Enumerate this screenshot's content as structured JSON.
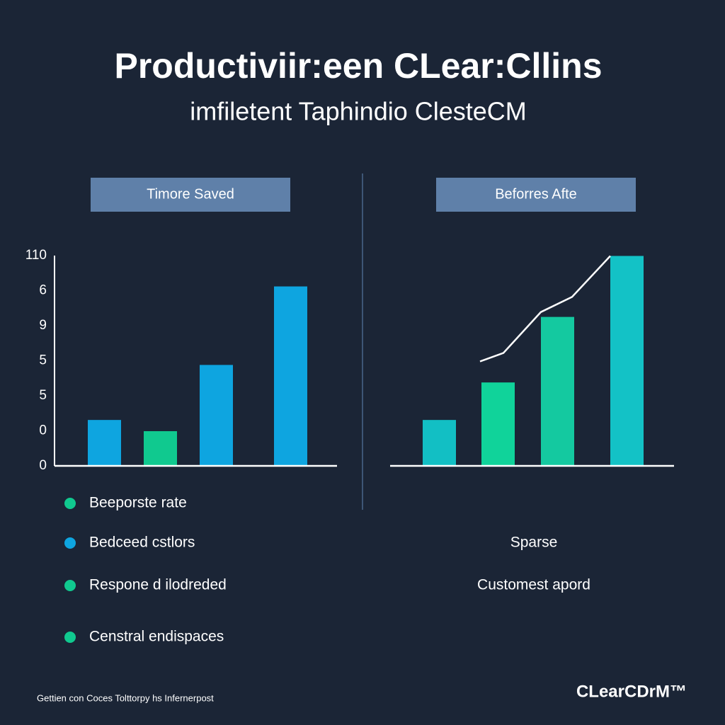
{
  "title": "Productiviir:een CLear:Cllins",
  "subtitle": "imfiletent Taphindio ClesteCM",
  "chart_data": [
    {
      "type": "bar",
      "title": "Timore Saved",
      "values": [
        1.31,
        0.99,
        2.88,
        5.12
      ],
      "colors": [
        "#0ea5e0",
        "#10c98f",
        "#0ea5e0",
        "#0ea5e0"
      ],
      "ylim": [
        0,
        6
      ],
      "yticks": [
        0,
        {
          "value": 1,
          "label": "0"
        },
        {
          "value": 2,
          "label": "5"
        },
        {
          "value": 3,
          "label": "5"
        },
        {
          "value": 4,
          "label": "9"
        },
        {
          "value": 5,
          "label": "6"
        },
        {
          "value": 6,
          "label": "110"
        }
      ],
      "legend": [
        {
          "label": "Beeporste rate",
          "color": "#10c98f"
        },
        {
          "label": "Bedceed cstlors",
          "color": "#0ea5e0"
        },
        {
          "label": "Respone d ilodreded",
          "color": "#10c98f"
        },
        {
          "label": "Censtral endispaces",
          "color": "#10c98f"
        }
      ]
    },
    {
      "type": "bar",
      "title": "Beforres Afte",
      "values": [
        1.31,
        2.38,
        4.25,
        5.99
      ],
      "colors": [
        "#12bfc4",
        "#10d39a",
        "#14c9a0",
        "#13c2c6"
      ],
      "ylim": [
        0,
        6
      ],
      "line": {
        "color": "#ffffff",
        "values": [
          2.98,
          3.22,
          4.39,
          4.82,
          5.99
        ]
      },
      "notes": [
        "Sparse",
        "Customest apord"
      ]
    }
  ],
  "footer": "Gettien con Coces Tolttorpy hs Infernerpost",
  "logo": "CLearCDrM™"
}
